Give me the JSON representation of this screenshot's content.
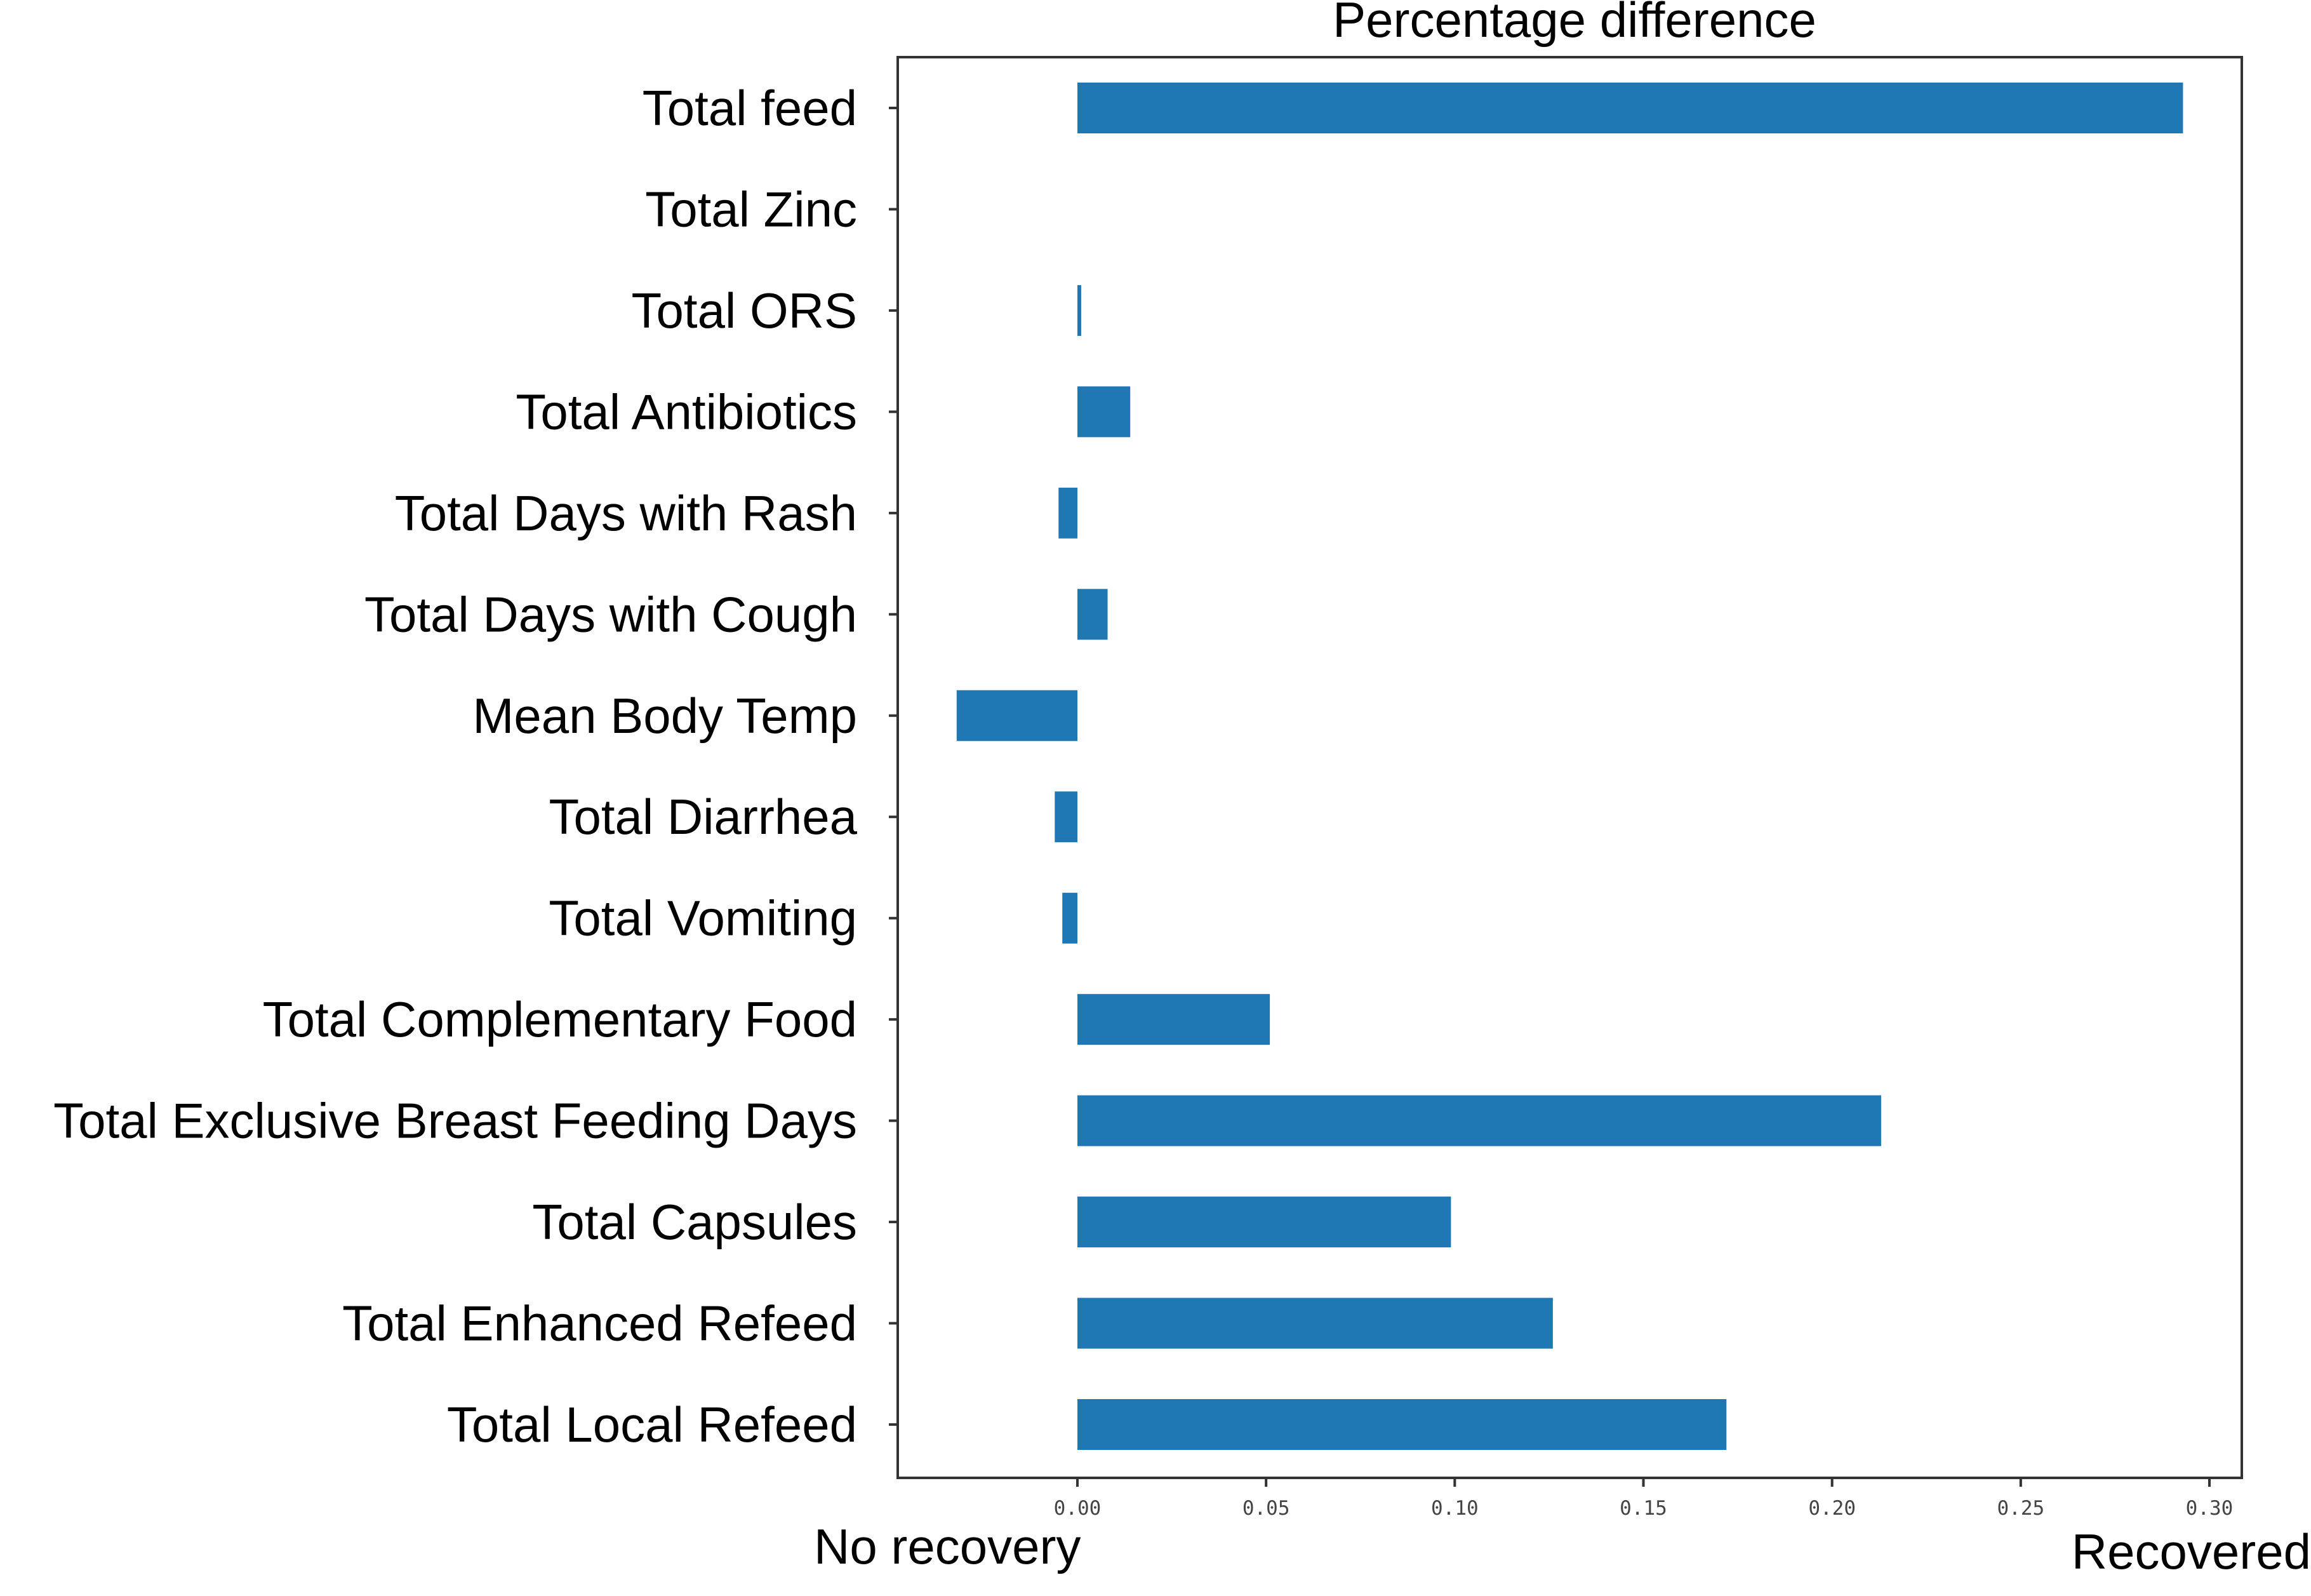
{
  "chart_data": {
    "type": "bar",
    "orientation": "horizontal",
    "title": "Percentage difference",
    "categories": [
      "Total feed",
      "Total Zinc",
      "Total ORS",
      "Total Antibiotics",
      "Total Days with Rash",
      "Total Days with Cough",
      "Mean Body Temp",
      "Total Diarrhea",
      "Total Vomiting",
      "Total Complementary Food",
      "Total Exclusive Breast Feeding Days",
      "Total Capsules",
      "Total Enhanced Refeed",
      "Total Local Refeed"
    ],
    "values": [
      0.293,
      0.0,
      0.001,
      0.014,
      -0.005,
      0.008,
      -0.032,
      -0.006,
      -0.004,
      0.051,
      0.213,
      0.099,
      0.126,
      0.172
    ],
    "xlim": [
      -0.048,
      0.31
    ],
    "xticks": [
      0.0,
      0.05,
      0.1,
      0.15,
      0.2,
      0.25,
      0.3
    ],
    "xtick_labels": [
      "0.00",
      "0.05",
      "0.10",
      "0.15",
      "0.20",
      "0.25",
      "0.30"
    ],
    "left_end_label": "No recovery",
    "right_end_label": "Recovered",
    "bar_color": "#1f77b4",
    "grid": false,
    "legend": "none"
  }
}
